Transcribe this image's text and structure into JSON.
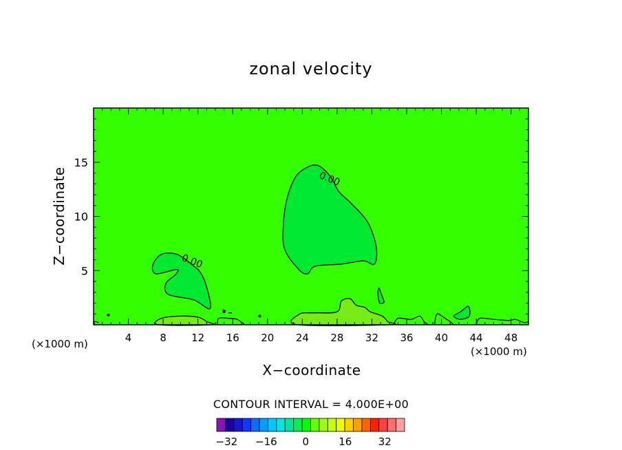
{
  "chart_data": {
    "type": "contour",
    "title": "zonal velocity",
    "xlabel": "X−coordinate",
    "ylabel": "Z−coordinate",
    "x_multiplier_label": "(×1000 m)",
    "xlim": [
      0,
      50
    ],
    "ylim": [
      0,
      20
    ],
    "x_ticks": [
      4,
      8,
      12,
      16,
      20,
      24,
      28,
      32,
      36,
      40,
      44,
      48
    ],
    "y_ticks": [
      5,
      10,
      15
    ],
    "contour_interval_label": "CONTOUR INTERVAL = 4.000E+00",
    "contour_labels": [
      {
        "text": "0.00",
        "x": 11.2,
        "y": 5.6
      },
      {
        "text": "0.00",
        "x": 27.0,
        "y": 13.2
      }
    ],
    "background_level": 0,
    "regions": [
      {
        "name": "upper-cell",
        "level": -4,
        "points": [
          [
            21.8,
            9
          ],
          [
            22.2,
            11.5
          ],
          [
            23.2,
            13.6
          ],
          [
            24.5,
            14.5
          ],
          [
            25.8,
            14.7
          ],
          [
            27.2,
            13.7
          ],
          [
            28.2,
            12.3
          ],
          [
            29.5,
            11.3
          ],
          [
            31.5,
            9.5
          ],
          [
            32.5,
            7.2
          ],
          [
            32.3,
            5.6
          ],
          [
            31,
            5.9
          ],
          [
            28.5,
            5.6
          ],
          [
            25.5,
            5.4
          ],
          [
            24.6,
            4.7
          ],
          [
            23.6,
            5.1
          ],
          [
            22,
            6.9
          ]
        ]
      },
      {
        "name": "lower-cell",
        "level": -4,
        "points": [
          [
            6.8,
            5.5
          ],
          [
            7.8,
            6.5
          ],
          [
            9.6,
            6.5
          ],
          [
            11.4,
            5.5
          ],
          [
            12.3,
            4.8
          ],
          [
            13,
            3.5
          ],
          [
            13.4,
            1.5
          ],
          [
            11.5,
            2.3
          ],
          [
            8.6,
            2.8
          ],
          [
            8.3,
            3.8
          ],
          [
            9.5,
            4.7
          ],
          [
            9.5,
            5.1
          ],
          [
            7.2,
            4.7
          ]
        ]
      },
      {
        "name": "surface-band-1",
        "level": 4,
        "points": [
          [
            7.5,
            0
          ],
          [
            7.8,
            0.6
          ],
          [
            10,
            0.8
          ],
          [
            12,
            0.7
          ],
          [
            13,
            0.3
          ],
          [
            13.5,
            0
          ]
        ]
      },
      {
        "name": "surface-band-2",
        "level": 4,
        "points": [
          [
            23.5,
            0
          ],
          [
            23.7,
            1
          ],
          [
            25.5,
            1.1
          ],
          [
            28,
            1.2
          ],
          [
            28.5,
            2.2
          ],
          [
            29.5,
            2.4
          ],
          [
            30.2,
            1.8
          ],
          [
            31.2,
            1.6
          ],
          [
            31.8,
            1.2
          ],
          [
            33.2,
            0.8
          ],
          [
            33.8,
            0.3
          ],
          [
            34,
            0
          ]
        ]
      },
      {
        "name": "x33-cell",
        "level": -4,
        "points": [
          [
            32.8,
            3.4
          ],
          [
            33.1,
            2.8
          ],
          [
            33.4,
            2.1
          ],
          [
            32.9,
            2.0
          ],
          [
            32.7,
            2.8
          ]
        ]
      },
      {
        "name": "x43-cell",
        "level": -4,
        "points": [
          [
            41.4,
            0.8
          ],
          [
            42.2,
            1.2
          ],
          [
            43.1,
            1.7
          ],
          [
            43.2,
            0.8
          ],
          [
            42.2,
            0.5
          ]
        ]
      }
    ],
    "lines": [
      [
        [
          34.5,
          0
        ],
        [
          35,
          0.6
        ],
        [
          36.5,
          0.5
        ],
        [
          37.5,
          0.8
        ],
        [
          38,
          0.3
        ],
        [
          38.5,
          0
        ]
      ],
      [
        [
          39.2,
          0
        ],
        [
          39.5,
          1
        ],
        [
          40.4,
          0.6
        ],
        [
          41,
          0.3
        ],
        [
          41.4,
          0
        ]
      ],
      [
        [
          44,
          0
        ],
        [
          44.4,
          0.6
        ],
        [
          46,
          0.5
        ],
        [
          47.8,
          0.4
        ],
        [
          48.5,
          0.5
        ],
        [
          49.5,
          0.2
        ],
        [
          50,
          0.3
        ]
      ],
      [
        [
          14.2,
          0
        ],
        [
          14.4,
          0.6
        ],
        [
          15.5,
          0.6
        ],
        [
          16.5,
          0.5
        ],
        [
          17.4,
          0
        ]
      ],
      [
        [
          0.1,
          0
        ],
        [
          0.1,
          0.3
        ],
        [
          0.6,
          0.2
        ]
      ],
      [
        [
          14.8,
          1.4
        ],
        [
          15.2,
          1.3
        ]
      ],
      [
        [
          15.5,
          1.1
        ],
        [
          15.9,
          1.1
        ]
      ]
    ],
    "dots": [
      [
        1.7,
        0.9
      ],
      [
        19.1,
        0.8
      ],
      [
        15.0,
        1.2
      ]
    ],
    "colorbar": {
      "colors": [
        "#8b14b5",
        "#1a00a0",
        "#1c14cd",
        "#0b3bff",
        "#0b6cff",
        "#009eff",
        "#00c8ff",
        "#00e6e6",
        "#00e6a0",
        "#00f05a",
        "#00ff00",
        "#64ff00",
        "#a0ff00",
        "#c8ff00",
        "#f0ff00",
        "#ffd000",
        "#ffa000",
        "#ff6400",
        "#ff2000",
        "#ff4040",
        "#ff6e6e",
        "#ffa0a0"
      ],
      "min_level": -36,
      "max_level": 40,
      "tick_labels": [
        "−32",
        "−16",
        "0",
        "16",
        "32"
      ],
      "tick_values": [
        -32,
        -16,
        0,
        16,
        32
      ]
    },
    "level_colors": {
      "-4": "#00e830",
      "0": "#33ff00",
      "4": "#77ec14"
    }
  }
}
